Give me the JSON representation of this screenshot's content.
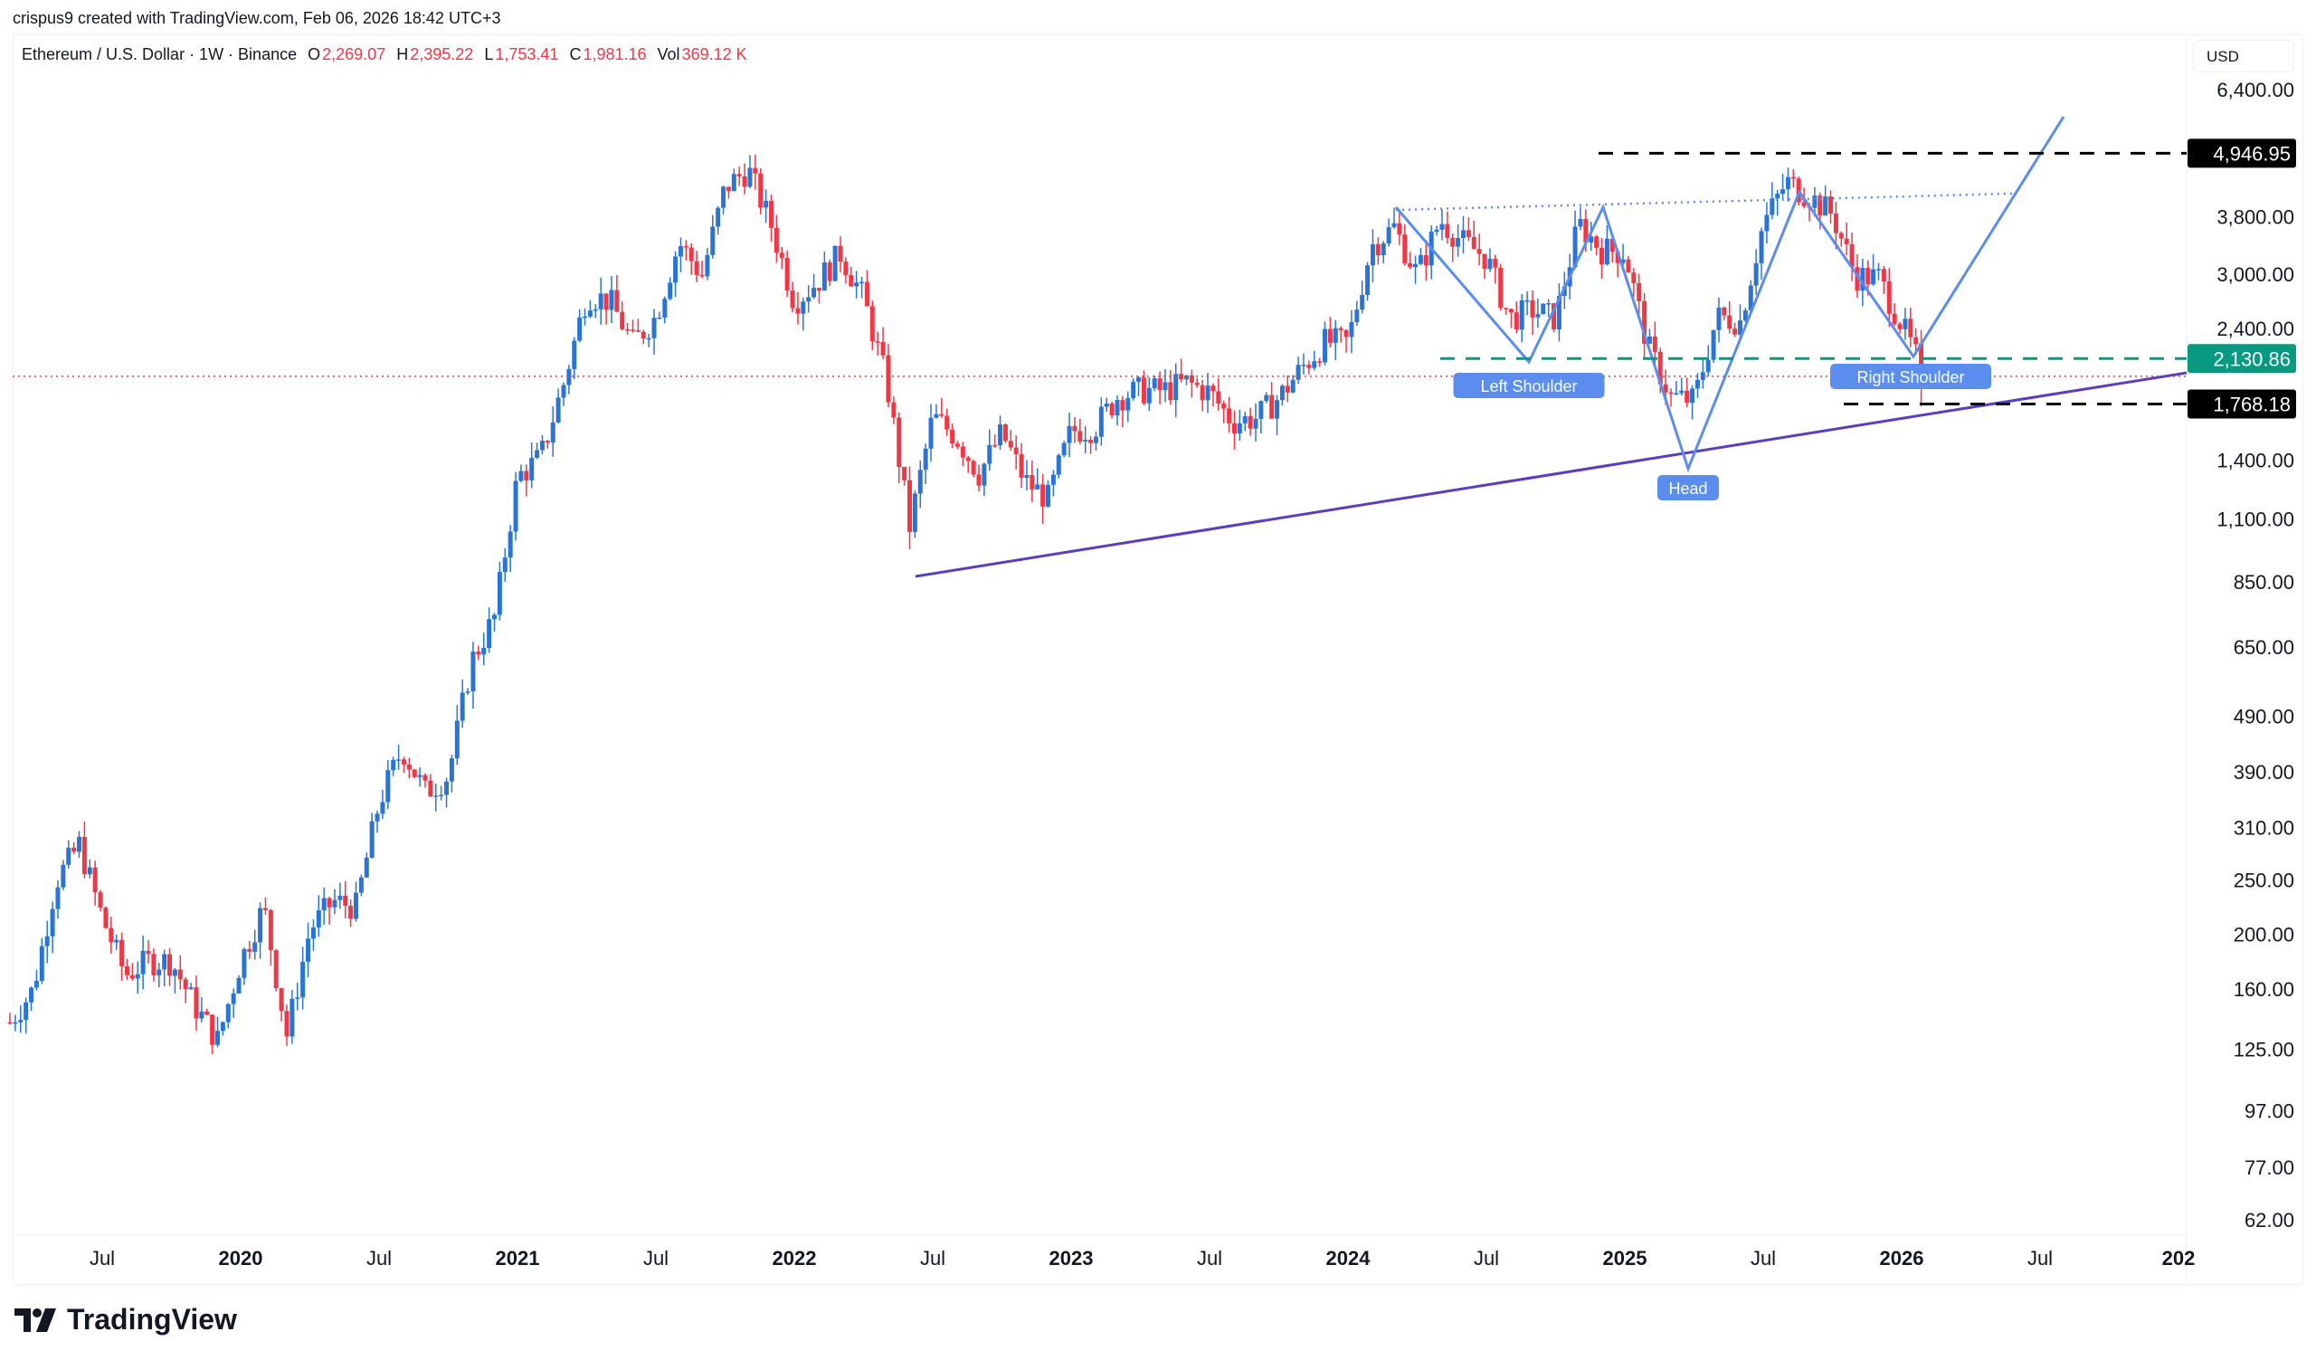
{
  "credit": "crispus9 created with TradingView.com, Feb 06, 2026 18:42 UTC+3",
  "legend": {
    "symbol": "Ethereum / U.S. Dollar · 1W · Binance",
    "o_label": "O",
    "o": "2,269.07",
    "h_label": "H",
    "h": "2,395.22",
    "l_label": "L",
    "l": "1,753.41",
    "c_label": "C",
    "c": "1,981.16",
    "vol_label": "Vol",
    "vol": "369.12 K"
  },
  "currency": "USD",
  "logo": "TradingView",
  "colors": {
    "up": "#2a74d6",
    "down": "#f23645",
    "trendline": "#5b3cc4",
    "pattern": "#5b8def",
    "support": "#089981"
  },
  "chart_data": {
    "type": "candlestick",
    "scale": "log",
    "interval": "1W",
    "ylim": [
      55,
      7200
    ],
    "y_ticks": [
      6400,
      3800,
      3000,
      2400,
      1400,
      1100,
      850,
      650,
      490,
      390,
      310,
      250,
      200,
      160,
      125,
      97,
      77,
      62
    ],
    "y_tick_labels": [
      "6,400.00",
      "3,800.00",
      "3,000.00",
      "2,400.00",
      "1,400.00",
      "1,100.00",
      "850.00",
      "650.00",
      "490.00",
      "390.00",
      "310.00",
      "250.00",
      "200.00",
      "160.00",
      "125.00",
      "97.00",
      "77.00",
      "62.00"
    ],
    "x_ticks": [
      {
        "t": 2019.5,
        "label": "Jul",
        "bold": false
      },
      {
        "t": 2020,
        "label": "2020",
        "bold": true
      },
      {
        "t": 2020.5,
        "label": "Jul",
        "bold": false
      },
      {
        "t": 2021,
        "label": "2021",
        "bold": true
      },
      {
        "t": 2021.5,
        "label": "Jul",
        "bold": false
      },
      {
        "t": 2022,
        "label": "2022",
        "bold": true
      },
      {
        "t": 2022.5,
        "label": "Jul",
        "bold": false
      },
      {
        "t": 2023,
        "label": "2023",
        "bold": true
      },
      {
        "t": 2023.5,
        "label": "Jul",
        "bold": false
      },
      {
        "t": 2024,
        "label": "2024",
        "bold": true
      },
      {
        "t": 2024.5,
        "label": "Jul",
        "bold": false
      },
      {
        "t": 2025,
        "label": "2025",
        "bold": true
      },
      {
        "t": 2025.5,
        "label": "Jul",
        "bold": false
      },
      {
        "t": 2026,
        "label": "2026",
        "bold": true
      },
      {
        "t": 2026.5,
        "label": "Jul",
        "bold": false
      },
      {
        "t": 2027,
        "label": "202",
        "bold": true
      }
    ],
    "monthly_closes": {
      "start": "2019-03",
      "values": [
        140,
        160,
        250,
        290,
        215,
        170,
        180,
        180,
        150,
        130,
        180,
        225,
        133,
        205,
        230,
        225,
        345,
        430,
        360,
        385,
        615,
        737,
        1310,
        1420,
        1920,
        2770,
        2700,
        2270,
        2530,
        3430,
        3000,
        4300,
        4630,
        3680,
        2690,
        2920,
        3280,
        2730,
        1940,
        1070,
        1680,
        1550,
        1330,
        1570,
        1290,
        1200,
        1585,
        1605,
        1820,
        1870,
        1870,
        1930,
        1855,
        1645,
        1670,
        1815,
        2050,
        2280,
        2280,
        3380,
        3650,
        3010,
        3760,
        3430,
        3230,
        2510,
        2600,
        2515,
        3700,
        3330,
        3300,
        2240,
        1820,
        1795,
        2530,
        2485,
        3700,
        4400,
        4150,
        3850,
        2990,
        2970,
        2450,
        1981.16
      ]
    },
    "last_candle": {
      "open": 2269.07,
      "high": 2395.22,
      "low": 1753.41,
      "close": 1981.16
    },
    "price_labels": [
      {
        "value": 4946.95,
        "label": "4,946.95",
        "kind": "resistance"
      },
      {
        "value": 2130.86,
        "label": "2,130.86",
        "kind": "neckline"
      },
      {
        "value": 1768.18,
        "label": "1,768.18",
        "kind": "support"
      }
    ],
    "current_price": 1981.16,
    "annotations": [
      {
        "text": "Left Shoulder"
      },
      {
        "text": "Head"
      },
      {
        "text": "Right Shoulder"
      }
    ]
  }
}
